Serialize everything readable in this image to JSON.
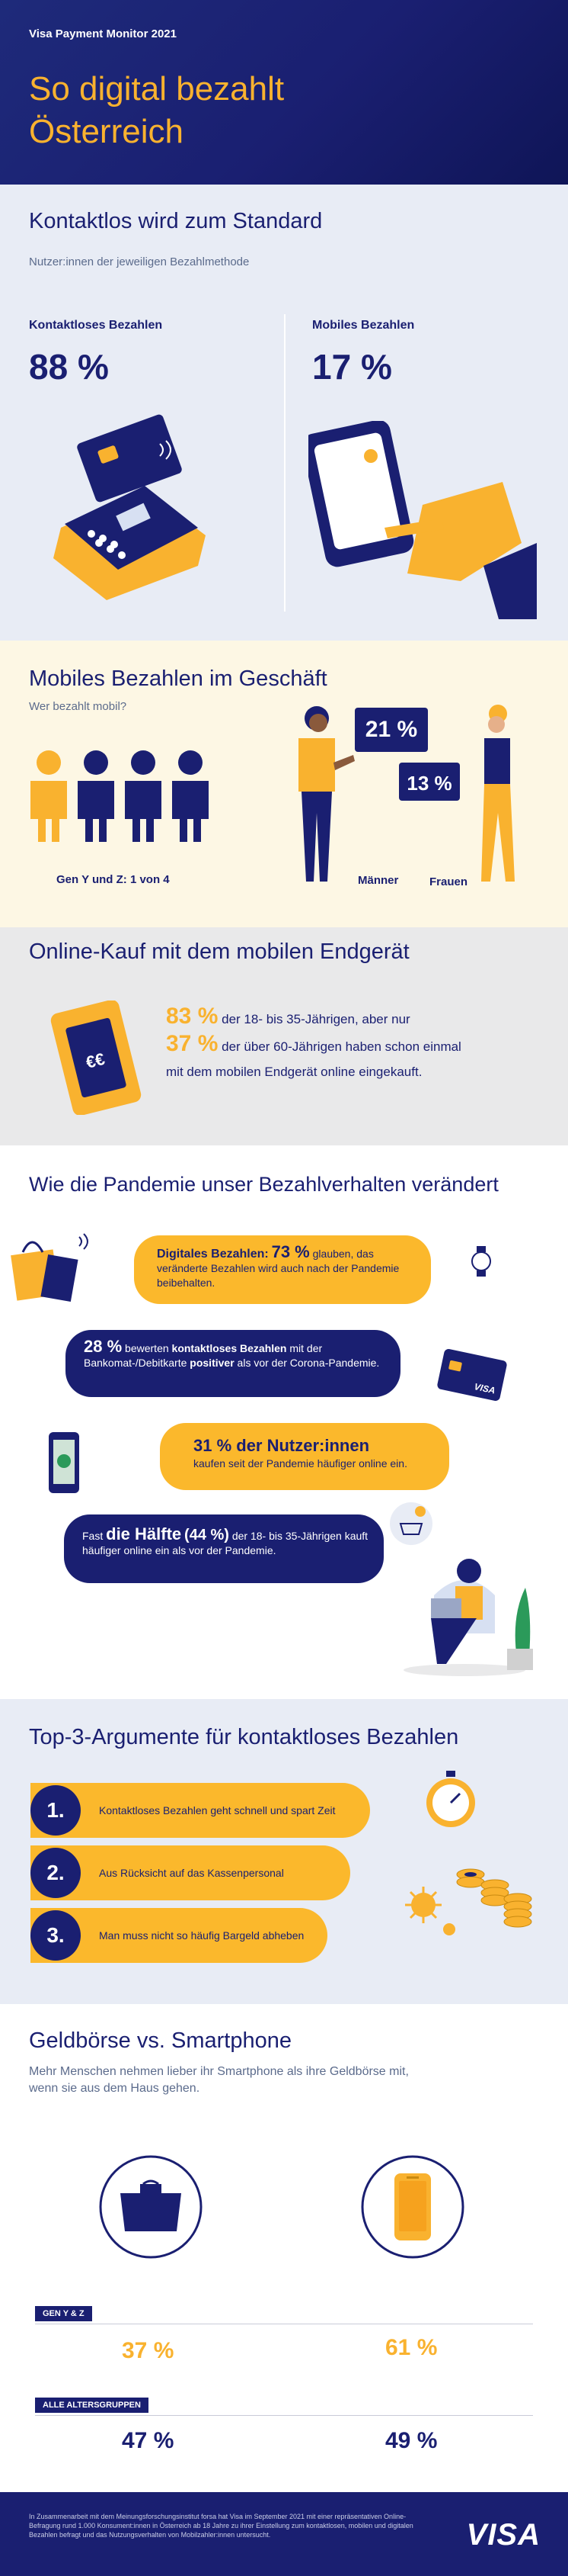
{
  "header": {
    "kicker": "Visa Payment Monitor 2021",
    "title_line1": "So digital bezahlt",
    "title_line2": "Österreich"
  },
  "contactless": {
    "heading": "Kontaktlos wird zum Standard",
    "subheading": "Nutzer:innen der jeweiligen Bezahlmethode",
    "left_label": "Kontaktloses Bezahlen",
    "left_value": "88 %",
    "right_label": "Mobiles Bezahlen",
    "right_value": "17 %"
  },
  "mobile_store": {
    "heading": "Mobiles Bezahlen im Geschäft",
    "subheading": "Wer bezahlt mobil?",
    "genyz_caption": "Gen Y und Z: 1 von 4",
    "men_value": "21 %",
    "women_value": "13 %",
    "men_label": "Männer",
    "women_label": "Frauen",
    "people_highlighted": 1,
    "people_total": 4
  },
  "online": {
    "heading": "Online-Kauf mit dem mobilen Endgerät",
    "line1_value": "83 %",
    "line1_text": "der 18- bis 35-Jährigen, aber nur",
    "line2_value": "37 %",
    "line2_text": "der über 60-Jährigen haben schon einmal",
    "line3_text": "mit dem mobilen Endgerät online eingekauft."
  },
  "pandemic": {
    "heading": "Wie die Pandemie unser Bezahlverhalten verändert",
    "b1_bold": "Digitales Bezahlen:",
    "b1_value": "73 %",
    "b1_text": "glauben, das veränderte Bezahlen wird auch nach der Pandemie beibehalten.",
    "b2_value": "28 %",
    "b2_text1": "bewerten",
    "b2_bold": "kontaktloses Bezahlen",
    "b2_text2": "mit der Bankomat-/Debitkarte",
    "b2_bold2": "positiver",
    "b2_text3": "als vor der Corona-Pandemie.",
    "b3_bold": "31 % der Nutzer:innen",
    "b3_text": "kaufen seit der Pandemie häufiger online ein.",
    "b4_pre": "Fast",
    "b4_bold": "die Hälfte",
    "b4_value": "(44 %)",
    "b4_text": "der 18- bis 35-Jährigen kauft häufiger online ein als vor der Pandemie.",
    "card_brand": "VISA"
  },
  "top3": {
    "heading": "Top-3-Argumente für kontaktloses Bezahlen",
    "items": [
      {
        "num": "1.",
        "text": "Kontaktloses Bezahlen geht schnell und spart Zeit"
      },
      {
        "num": "2.",
        "text": "Aus Rücksicht auf das Kassenpersonal"
      },
      {
        "num": "3.",
        "text": "Man muss nicht so häufig Bargeld abheben"
      }
    ]
  },
  "wallet": {
    "heading": "Geldbörse vs. Smartphone",
    "sub1": "Mehr Menschen nehmen lieber ihr Smartphone als ihre Geldbörse mit,",
    "sub2": "wenn sie aus dem Haus gehen.",
    "tag1": "GEN Y & Z",
    "genyz_wallet": "37 %",
    "genyz_phone": "61 %",
    "tag2": "ALLE ALTERSGRUPPEN",
    "all_wallet": "47 %",
    "all_phone": "49 %"
  },
  "footer": {
    "note": "In Zusammenarbeit mit dem Meinungsforschungsinstitut forsa hat Visa im September 2021 mit einer repräsentativen Online-Befragung rund 1.000 Konsument:innen in Österreich ab 18 Jahre zu ihrer Einstellung zum kontaktlosen, mobilen und digitalen Bezahlen befragt und das Nutzungsverhalten von Mobilzahler:innen untersucht.",
    "logo": "VISA"
  },
  "colors": {
    "navy": "#1a1f71",
    "gold": "#f9b22f",
    "light_blue_bg": "#e8ecf5",
    "cream_bg": "#fdf7e4",
    "grey_bg": "#e9e9ea"
  }
}
